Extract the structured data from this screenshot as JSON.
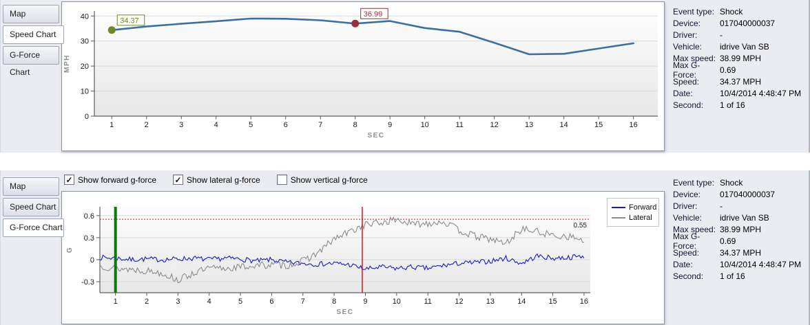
{
  "tabs": {
    "items": [
      "Map",
      "Speed Chart",
      "G-Force Chart"
    ],
    "top_selected_index": 1,
    "bottom_selected_index": 2
  },
  "gforce_controls": {
    "checkboxes": [
      {
        "label": "Show forward g-force",
        "checked": true
      },
      {
        "label": "Show lateral g-force",
        "checked": true
      },
      {
        "label": "Show vertical g-force",
        "checked": false
      }
    ]
  },
  "event_details": {
    "rows": [
      {
        "label": "Event type:",
        "value": "Shock"
      },
      {
        "label": "Device:",
        "value": "017040000037"
      },
      {
        "label": "Driver:",
        "value": "-"
      },
      {
        "label": "Vehicle:",
        "value": "idrive Van SB"
      },
      {
        "label": "Max speed:",
        "value": "38.99 MPH"
      },
      {
        "label": "Max G-Force:",
        "value": "0.69"
      },
      {
        "label": "Speed:",
        "value": "34.37 MPH"
      },
      {
        "label": "Date:",
        "value": "10/4/2014 4:48:47 PM"
      },
      {
        "label": "Second:",
        "value": "1 of 16"
      }
    ]
  },
  "chart_data": [
    {
      "type": "line",
      "title": "",
      "xlabel": "SEC",
      "ylabel": "MPH",
      "x": [
        1,
        2,
        3,
        4,
        5,
        6,
        7,
        8,
        9,
        10,
        11,
        12,
        13,
        14,
        15,
        16
      ],
      "series": [
        {
          "name": "Speed",
          "color": "#3a6fa5",
          "values": [
            34.37,
            35.8,
            36.9,
            37.9,
            38.99,
            38.9,
            38.3,
            36.99,
            38.0,
            35.2,
            33.7,
            29.3,
            24.7,
            24.9,
            27.0,
            29.1
          ]
        }
      ],
      "xlim": [
        0.5,
        16.7
      ],
      "ylim": [
        0,
        42
      ],
      "yticks": [
        0,
        10,
        20,
        30,
        40
      ],
      "grid": true,
      "legend_position": "none",
      "annotations": [
        {
          "x": 1,
          "y": 34.37,
          "label": "34.37",
          "color": "#6f8822"
        },
        {
          "x": 8,
          "y": 36.99,
          "label": "36.99",
          "color": "#963137"
        }
      ]
    },
    {
      "type": "line",
      "title": "",
      "xlabel": "SEC",
      "ylabel": "G",
      "xlim": [
        0.5,
        16.2
      ],
      "ylim": [
        -0.45,
        0.72
      ],
      "xticks": [
        1,
        2,
        3,
        4,
        5,
        6,
        7,
        8,
        9,
        10,
        11,
        12,
        13,
        14,
        15,
        16
      ],
      "yticks": [
        -0.3,
        0,
        0.3,
        0.6
      ],
      "grid": true,
      "legend_position": "top-right",
      "series": [
        {
          "name": "Forward",
          "color": "#1717cf",
          "noise": 0.035,
          "seed": 7,
          "t": [
            0.5,
            1,
            1.5,
            2,
            2.5,
            3,
            3.5,
            4,
            4.5,
            5,
            5.5,
            6,
            6.5,
            7,
            7.5,
            8,
            8.5,
            9,
            9.5,
            10,
            10.5,
            11,
            11.5,
            12,
            12.5,
            13,
            13.5,
            14,
            14.5,
            15,
            15.5,
            16
          ],
          "values": [
            0.03,
            0.02,
            0,
            0.01,
            0,
            0.01,
            0.02,
            0,
            0.02,
            0.01,
            -0.02,
            0,
            -0.04,
            -0.05,
            -0.06,
            -0.05,
            -0.07,
            -0.13,
            -0.1,
            -0.12,
            -0.1,
            -0.12,
            -0.08,
            -0.05,
            -0.04,
            -0.02,
            0.02,
            -0.05,
            0.05,
            0.02,
            0.03,
            0.05
          ]
        },
        {
          "name": "Lateral",
          "color": "#8b8b8b",
          "noise": 0.05,
          "seed": 13,
          "t": [
            0.5,
            1,
            1.5,
            2,
            2.5,
            3,
            3.5,
            4,
            4.5,
            5,
            5.5,
            6,
            6.5,
            7,
            7.5,
            8,
            8.5,
            9,
            9.5,
            10,
            10.5,
            11,
            11.5,
            12,
            12.5,
            13,
            13.5,
            14,
            14.5,
            15,
            15.5,
            16
          ],
          "values": [
            -0.08,
            -0.12,
            -0.13,
            -0.15,
            -0.18,
            -0.28,
            -0.18,
            -0.12,
            -0.12,
            -0.1,
            -0.08,
            -0.07,
            -0.08,
            -0.02,
            0.1,
            0.28,
            0.38,
            0.48,
            0.5,
            0.55,
            0.48,
            0.5,
            0.52,
            0.4,
            0.32,
            0.28,
            0.22,
            0.42,
            0.38,
            0.33,
            0.32,
            0.26
          ]
        }
      ],
      "threshold": {
        "y": 0.55,
        "label": "0.55",
        "color": "#dd1111"
      },
      "vlines": [
        {
          "x": 1,
          "color": "#0a7a0a",
          "width": 4
        },
        {
          "x": 8.9,
          "color": "#e01212",
          "width": 1.5
        }
      ]
    }
  ]
}
